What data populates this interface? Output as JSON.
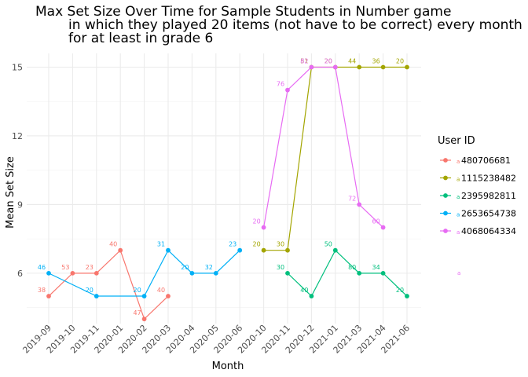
{
  "chart_data": {
    "type": "line",
    "title_lines": [
      "Max Set Size Over Time for Sample Students in Number game",
      "in which they played 20 items (not have to be correct) every month",
      "for at least in grade 6"
    ],
    "xlabel": "Month",
    "ylabel": "Mean Set Size",
    "categories": [
      "2019-09",
      "2019-10",
      "2019-11",
      "2020-01",
      "2020-02",
      "2020-03",
      "2020-04",
      "2020-05",
      "2020-06",
      "2020-10",
      "2020-11",
      "2020-12",
      "2021-01",
      "2021-03",
      "2021-04",
      "2021-06"
    ],
    "yticks": [
      6,
      9,
      12,
      15
    ],
    "ylim": [
      3.8,
      15.6
    ],
    "grid": true,
    "legend": {
      "title": "User ID",
      "placement": "right"
    },
    "series": [
      {
        "name": "480706681",
        "color": "#F8766D",
        "points": [
          {
            "x": "2019-09",
            "y": 5,
            "label": "38"
          },
          {
            "x": "2019-10",
            "y": 6,
            "label": "53"
          },
          {
            "x": "2019-11",
            "y": 6,
            "label": "23"
          },
          {
            "x": "2020-01",
            "y": 7,
            "label": "40"
          },
          {
            "x": "2020-02",
            "y": 4,
            "label": "47"
          },
          {
            "x": "2020-03",
            "y": 5,
            "label": "40"
          }
        ]
      },
      {
        "name": "1115238482",
        "color": "#A3A500",
        "points": [
          {
            "x": "2020-10",
            "y": 7,
            "label": "20"
          },
          {
            "x": "2020-11",
            "y": 7,
            "label": "30"
          },
          {
            "x": "2020-12",
            "y": 15,
            "label": "51"
          },
          {
            "x": "2021-01",
            "y": 15,
            "label": "20"
          },
          {
            "x": "2021-03",
            "y": 15,
            "label": "44"
          },
          {
            "x": "2021-04",
            "y": 15,
            "label": "36"
          },
          {
            "x": "2021-06",
            "y": 15,
            "label": "20"
          }
        ]
      },
      {
        "name": "2395982811",
        "color": "#00BF7D",
        "points": [
          {
            "x": "2020-11",
            "y": 6,
            "label": "30"
          },
          {
            "x": "2020-12",
            "y": 5,
            "label": "40"
          },
          {
            "x": "2021-01",
            "y": 7,
            "label": "50"
          },
          {
            "x": "2021-03",
            "y": 6,
            "label": "80"
          },
          {
            "x": "2021-04",
            "y": 6,
            "label": "34"
          },
          {
            "x": "2021-06",
            "y": 5,
            "label": "20"
          }
        ]
      },
      {
        "name": "2653654738",
        "color": "#00B0F6",
        "points": [
          {
            "x": "2019-09",
            "y": 6,
            "label": "46"
          },
          {
            "x": "2019-11",
            "y": 5,
            "label": "20"
          },
          {
            "x": "2020-02",
            "y": 5,
            "label": "20"
          },
          {
            "x": "2020-03",
            "y": 7,
            "label": "31"
          },
          {
            "x": "2020-04",
            "y": 6,
            "label": "20"
          },
          {
            "x": "2020-05",
            "y": 6,
            "label": "32"
          },
          {
            "x": "2020-06",
            "y": 7,
            "label": "23"
          }
        ]
      },
      {
        "name": "4068064334",
        "color": "#E76BF3",
        "points": [
          {
            "x": "2020-10",
            "y": 8,
            "label": "20"
          },
          {
            "x": "2020-11",
            "y": 14,
            "label": "76"
          },
          {
            "x": "2020-12",
            "y": 15,
            "label": "82"
          },
          {
            "x": "2021-01",
            "y": 15,
            "label": "20"
          },
          {
            "x": "2021-03",
            "y": 9,
            "label": "72"
          },
          {
            "x": "2021-04",
            "y": 8,
            "label": "60"
          }
        ]
      }
    ]
  }
}
